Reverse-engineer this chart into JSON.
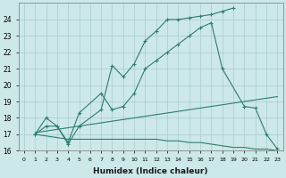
{
  "xlabel": "Humidex (Indice chaleur)",
  "bg_color": "#cce8e8",
  "line_color": "#2e7d6e",
  "grid_color": "#aacccc",
  "ylim": [
    16,
    25
  ],
  "xlim": [
    -0.5,
    23.5
  ],
  "line1_x": [
    1,
    2,
    3,
    4,
    5,
    7,
    8,
    9,
    10,
    11,
    12,
    13,
    14,
    15,
    16,
    17,
    18,
    19
  ],
  "line1_y": [
    17,
    18,
    17.5,
    16.4,
    17.5,
    18.5,
    21.2,
    20.5,
    21.3,
    22.7,
    23.3,
    24.0,
    24.0,
    24.1,
    24.2,
    24.3,
    24.5,
    24.7
  ],
  "line2_x": [
    1,
    2,
    3,
    4,
    5,
    7,
    8,
    9,
    10,
    11,
    12,
    13,
    14,
    15,
    16,
    17,
    18,
    20,
    21,
    22,
    23
  ],
  "line2_y": [
    17,
    17.5,
    17.5,
    16.5,
    18.3,
    19.5,
    18.5,
    18.7,
    19.5,
    21.0,
    21.5,
    22.0,
    22.5,
    23.0,
    23.5,
    23.8,
    21.0,
    18.7,
    18.6,
    17.0,
    16.1
  ],
  "line3_x": [
    1,
    2,
    3,
    4,
    5,
    6,
    7,
    8,
    9,
    10,
    11,
    12,
    13,
    14,
    15,
    16,
    17,
    18,
    19,
    20,
    21,
    22,
    23
  ],
  "line3_y": [
    17.1,
    17.2,
    17.3,
    17.4,
    17.5,
    17.6,
    17.7,
    17.8,
    17.9,
    18.0,
    18.1,
    18.2,
    18.3,
    18.4,
    18.5,
    18.6,
    18.7,
    18.8,
    18.9,
    19.0,
    19.1,
    19.2,
    19.3
  ],
  "line4_x": [
    1,
    2,
    3,
    4,
    5,
    6,
    7,
    8,
    9,
    10,
    11,
    12,
    13,
    14,
    15,
    16,
    17,
    18,
    19,
    20,
    21,
    22,
    23
  ],
  "line4_y": [
    17.0,
    16.9,
    16.8,
    16.7,
    16.7,
    16.7,
    16.7,
    16.7,
    16.7,
    16.7,
    16.7,
    16.7,
    16.6,
    16.6,
    16.5,
    16.5,
    16.4,
    16.3,
    16.2,
    16.2,
    16.1,
    16.1,
    16.0
  ]
}
